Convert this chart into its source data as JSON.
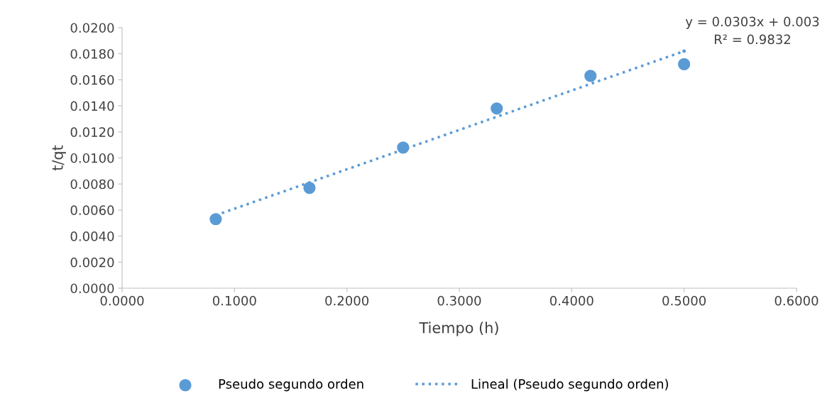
{
  "chart_data": {
    "type": "scatter",
    "xlabel": "Tiempo (h)",
    "ylabel": "t/qt",
    "series": [
      {
        "name": "Pseudo segundo orden",
        "color": "#5b9bd5",
        "marker": "circle",
        "x": [
          0.0833,
          0.1667,
          0.25,
          0.3333,
          0.4167,
          0.5
        ],
        "values": [
          0.0053,
          0.0077,
          0.0108,
          0.0138,
          0.0163,
          0.0172
        ]
      },
      {
        "name": "Lineal (Pseudo segundo orden)",
        "type": "line",
        "color": "#5b9bd5",
        "line_style": "dotted",
        "marker": "none",
        "x": [
          0.0833,
          0.5
        ],
        "values": [
          0.0056,
          0.0182
        ]
      }
    ],
    "annotations": [
      "y = 0.0303x + 0.003",
      "R² = 0.9832"
    ],
    "xlim": [
      0,
      0.6
    ],
    "xticks": [
      {
        "value": 0,
        "label": "0.0000"
      },
      {
        "value": 0.1,
        "label": "0.1000"
      },
      {
        "value": 0.2,
        "label": "0.2000"
      },
      {
        "value": 0.3,
        "label": "0.3000"
      },
      {
        "value": 0.4,
        "label": "0.4000"
      },
      {
        "value": 0.5,
        "label": "0.5000"
      },
      {
        "value": 0.6,
        "label": "0.6000"
      }
    ],
    "ylim": [
      0,
      0.02
    ],
    "yticks": [
      {
        "value": 0,
        "label": "0.0000"
      },
      {
        "value": 0.002,
        "label": "0.0020"
      },
      {
        "value": 0.004,
        "label": "0.0040"
      },
      {
        "value": 0.006,
        "label": "0.0060"
      },
      {
        "value": 0.008,
        "label": "0.0080"
      },
      {
        "value": 0.01,
        "label": "0.0100"
      },
      {
        "value": 0.012,
        "label": "0.0120"
      },
      {
        "value": 0.014,
        "label": "0.0140"
      },
      {
        "value": 0.016,
        "label": "0.0160"
      },
      {
        "value": 0.018,
        "label": "0.0180"
      },
      {
        "value": 0.02,
        "label": "0.0200"
      }
    ],
    "grid": false,
    "legend": "bottom"
  }
}
